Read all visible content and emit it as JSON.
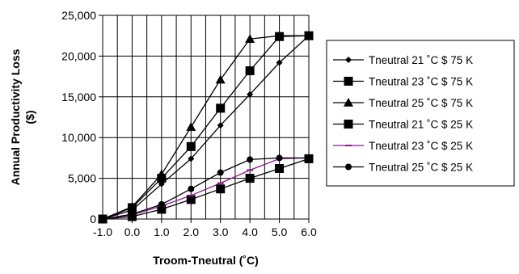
{
  "chart_data": {
    "type": "line",
    "xlabel": "Troom-Tneutral (˚C)",
    "ylabel_lines": [
      "Annual Productivity Loss",
      "($)"
    ],
    "x": [
      -1.0,
      0.0,
      1.0,
      2.0,
      3.0,
      4.0,
      5.0,
      6.0
    ],
    "x_tick_labels": [
      "-1.0",
      "0.0",
      "1.0",
      "2.0",
      "3.0",
      "4.0",
      "5.0",
      "6.0"
    ],
    "y_tick_values": [
      0,
      5000,
      10000,
      15000,
      20000,
      25000
    ],
    "y_tick_labels": [
      "0",
      "5,000",
      "10,000",
      "15,000",
      "20,000",
      "25,000"
    ],
    "xlim": [
      -1.0,
      6.0
    ],
    "ylim": [
      0,
      25000
    ],
    "grid": "vertical and horizontal",
    "legend_position": "right",
    "series": [
      {
        "name": "Tneutral 21 ˚C $ 75 K",
        "marker": "diamond",
        "color": "#000000",
        "values": [
          0,
          1100,
          4300,
          7400,
          11500,
          15300,
          19200,
          22500
        ]
      },
      {
        "name": "Tneutral 23 ˚C $ 75 K",
        "marker": "square",
        "color": "#000000",
        "values": [
          0,
          1400,
          5000,
          8900,
          13600,
          18200,
          22400,
          22500
        ]
      },
      {
        "name": "Tneutral 25 ˚C $ 75 K",
        "marker": "triangle",
        "color": "#000000",
        "values": [
          0,
          1500,
          5500,
          11300,
          17100,
          22100,
          22500,
          22500
        ]
      },
      {
        "name": "Tneutral 21 ˚C $ 25 K",
        "marker": "square",
        "color": "#000000",
        "values": [
          0,
          300,
          1200,
          2400,
          3700,
          5000,
          6200,
          7400
        ]
      },
      {
        "name": "Tneutral 23 ˚C $ 25 K",
        "marker": "dash",
        "color": "#8b1a8b",
        "values": [
          0,
          500,
          1600,
          2900,
          4400,
          6000,
          7400,
          7500
        ]
      },
      {
        "name": "Tneutral 25 ˚C $ 25 K",
        "marker": "circle",
        "color": "#000000",
        "values": [
          0,
          600,
          1800,
          3700,
          5700,
          7300,
          7500,
          7500
        ]
      }
    ]
  }
}
